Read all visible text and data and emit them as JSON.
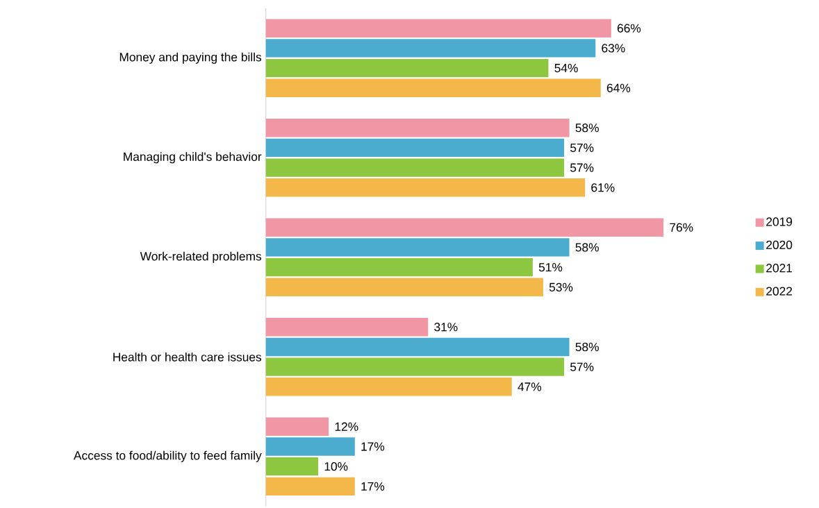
{
  "chart_data": {
    "type": "bar",
    "orientation": "horizontal",
    "legend": "right",
    "categories": [
      "Money and paying the bills",
      "Managing child's behavior",
      "Work-related problems",
      "Health or health care issues",
      "Access to food/ability to feed family"
    ],
    "series": [
      {
        "name": "2019",
        "color": "#f096a5",
        "values": [
          66,
          58,
          76,
          31,
          12
        ],
        "value_labels": [
          "66%",
          "58%",
          "76%",
          "31%",
          "12%"
        ]
      },
      {
        "name": "2020",
        "color": "#4bacd0",
        "values": [
          63,
          57,
          58,
          58,
          17
        ],
        "value_labels": [
          "63%",
          "57%",
          "58%",
          "58%",
          "17%"
        ]
      },
      {
        "name": "2021",
        "color": "#8dc63f",
        "values": [
          54,
          57,
          51,
          57,
          10
        ],
        "value_labels": [
          "54%",
          "57%",
          "51%",
          "57%",
          "10%"
        ]
      },
      {
        "name": "2022",
        "color": "#f4b84a",
        "values": [
          64,
          61,
          53,
          47,
          17
        ],
        "value_labels": [
          "64%",
          "61%",
          "53%",
          "47%",
          "17%"
        ]
      }
    ]
  }
}
